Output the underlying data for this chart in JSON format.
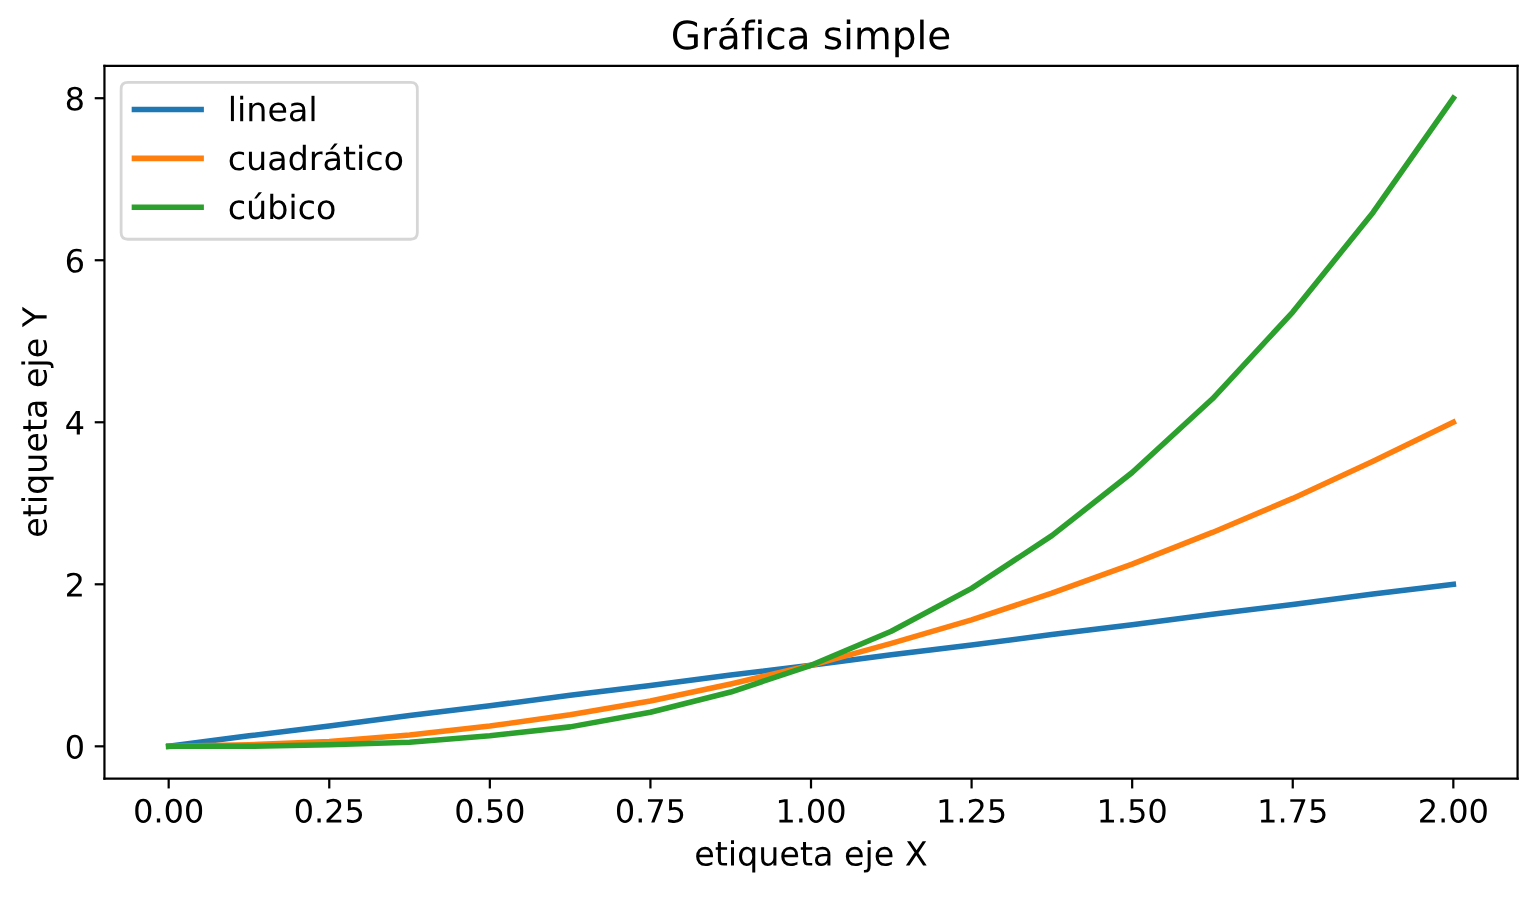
{
  "chart_data": {
    "type": "line",
    "title": "Gráfica simple",
    "xlabel": "etiqueta eje X",
    "ylabel": "etiqueta eje Y",
    "x": [
      0,
      0.125,
      0.25,
      0.375,
      0.5,
      0.625,
      0.75,
      0.875,
      1,
      1.125,
      1.25,
      1.375,
      1.5,
      1.625,
      1.75,
      1.875,
      2
    ],
    "series": [
      {
        "name": "lineal",
        "color": "#1f77b4",
        "values": [
          0,
          0.13,
          0.25,
          0.38,
          0.5,
          0.63,
          0.75,
          0.88,
          1,
          1.13,
          1.25,
          1.38,
          1.5,
          1.63,
          1.75,
          1.88,
          2
        ]
      },
      {
        "name": "cuadrático",
        "color": "#ff7f0e",
        "values": [
          0,
          0.02,
          0.06,
          0.14,
          0.25,
          0.39,
          0.56,
          0.77,
          1,
          1.27,
          1.56,
          1.89,
          2.25,
          2.64,
          3.06,
          3.52,
          4
        ]
      },
      {
        "name": "cúbico",
        "color": "#2ca02c",
        "values": [
          0,
          0,
          0.02,
          0.05,
          0.13,
          0.24,
          0.42,
          0.67,
          1,
          1.42,
          1.95,
          2.6,
          3.38,
          4.29,
          5.36,
          6.59,
          8
        ]
      }
    ],
    "xlim": [
      -0.1,
      2.1
    ],
    "ylim": [
      -0.4,
      8.4
    ],
    "xticks": [
      {
        "value": 0,
        "label": "0.00"
      },
      {
        "value": 0.25,
        "label": "0.25"
      },
      {
        "value": 0.5,
        "label": "0.50"
      },
      {
        "value": 0.75,
        "label": "0.75"
      },
      {
        "value": 1,
        "label": "1.00"
      },
      {
        "value": 1.25,
        "label": "1.25"
      },
      {
        "value": 1.5,
        "label": "1.50"
      },
      {
        "value": 1.75,
        "label": "1.75"
      },
      {
        "value": 2,
        "label": "2.00"
      }
    ],
    "yticks": [
      0,
      2,
      4,
      6,
      8
    ],
    "legend": "top left",
    "grid": false,
    "marker": "none",
    "line_style": "solid"
  }
}
